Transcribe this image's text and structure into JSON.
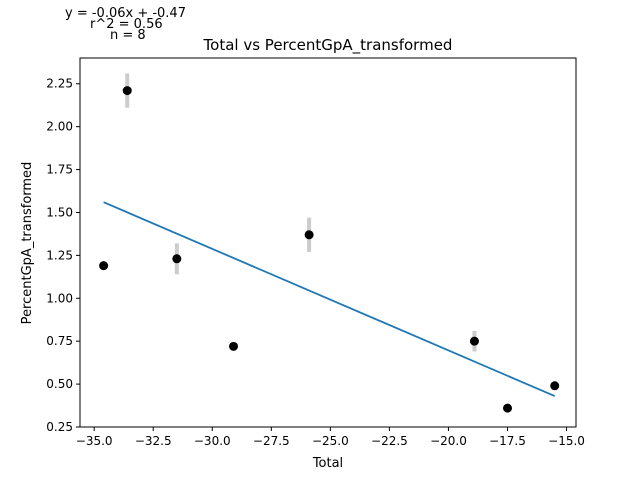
{
  "chart_data": {
    "type": "scatter",
    "title": "Total vs PercentGpA_transformed",
    "xlabel": "Total",
    "ylabel": "PercentGpA_transformed",
    "xlim": [
      -35.6,
      -14.6
    ],
    "ylim": [
      0.25,
      2.4
    ],
    "xticks": [
      -35.0,
      -32.5,
      -30.0,
      -27.5,
      -25.0,
      -22.5,
      -20.0,
      -17.5,
      -15.0
    ],
    "xtick_labels": [
      "−35.0",
      "−32.5",
      "−30.0",
      "−27.5",
      "−25.0",
      "−22.5",
      "−20.0",
      "−17.5",
      "−15.0"
    ],
    "yticks": [
      0.25,
      0.5,
      0.75,
      1.0,
      1.25,
      1.5,
      1.75,
      2.0,
      2.25
    ],
    "ytick_labels": [
      "0.25",
      "0.50",
      "0.75",
      "1.00",
      "1.25",
      "1.50",
      "1.75",
      "2.00",
      "2.25"
    ],
    "points": [
      {
        "x": -34.6,
        "y": 1.19,
        "err": 0.0
      },
      {
        "x": -33.6,
        "y": 2.21,
        "err": 0.1
      },
      {
        "x": -31.5,
        "y": 1.23,
        "err": 0.09
      },
      {
        "x": -29.1,
        "y": 0.72,
        "err": 0.0
      },
      {
        "x": -25.9,
        "y": 1.37,
        "err": 0.1
      },
      {
        "x": -18.9,
        "y": 0.75,
        "err": 0.06
      },
      {
        "x": -17.5,
        "y": 0.36,
        "err": 0.0
      },
      {
        "x": -15.5,
        "y": 0.49,
        "err": 0.0
      }
    ],
    "fit": {
      "slope": -0.06,
      "intercept": -0.47,
      "x_range": [
        -34.6,
        -15.5
      ],
      "y_range": [
        1.56,
        0.43
      ]
    },
    "annotations": {
      "equation": "y = -0.06x + -0.47",
      "r2": "r^2 = 0.56",
      "n": "n = 8"
    },
    "colors": {
      "points": "#000000",
      "errorbars": "#cccccc",
      "fit_line": "#1f77b4"
    }
  }
}
